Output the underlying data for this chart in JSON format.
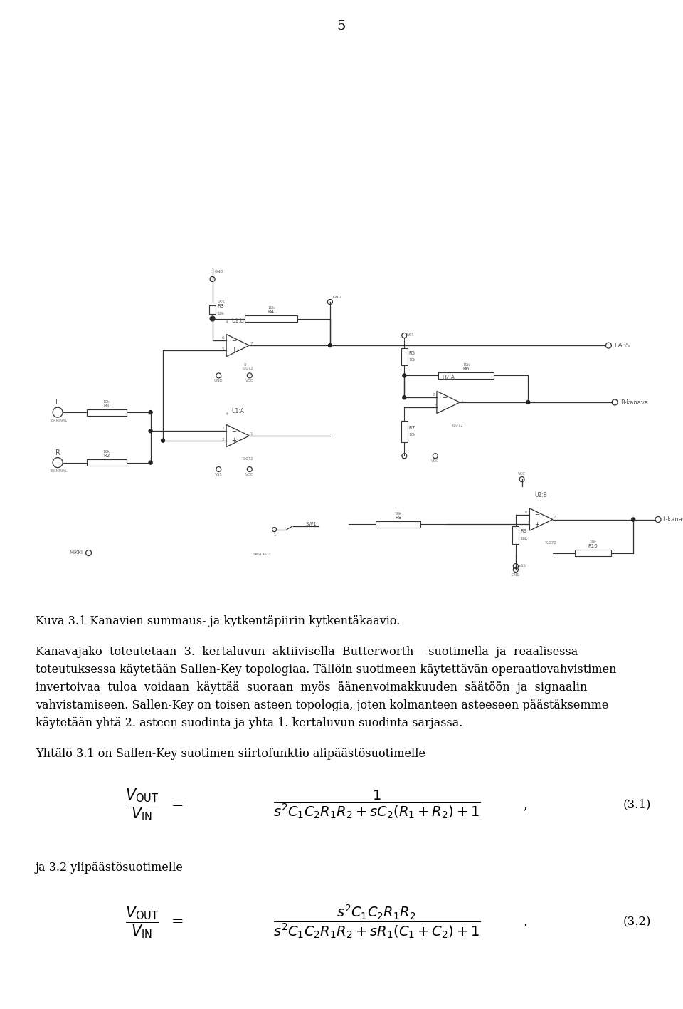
{
  "page_number": "5",
  "figure_caption": "Kuva 3.1 Kanavien summaus- ja kytkentäpiirin kytkentäkaavio.",
  "para1_lines": [
    "Kanavajako  toteutetaan  3.  kertaluvun  aktiivisella  Butterworth   -suotimella  ja  reaalisessa",
    "toteutuksessa käytetään Sallen-Key topologiaa. Tällöin suotimeen käytettävän operaatiovahvistimen",
    "invertoivaa  tuloa  voidaan  käyttää  suoraan  myös  äänenvoimakkuuden  säätöön  ja  signaalin",
    "vahvistamiseen. Sallen-Key on toisen asteen topologia, joten kolmanteen asteeseen päästäksemme",
    "käytetään yhtä 2. asteen suodinta ja yhta 1. kertaluvun suodinta sarjassa."
  ],
  "paragraph2": "Yhtälö 3.1 on Sallen-Key suotimen siirtofunktio alipäästösuotimelle",
  "eq1_label": "(3.1)",
  "paragraph3": "ja 3.2 ylipäästösuotimelle",
  "eq2_label": "(3.2)",
  "bg_color": "#ffffff",
  "text_color": "#000000"
}
